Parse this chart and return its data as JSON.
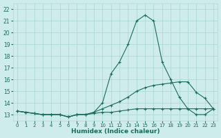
{
  "xlabel": "Humidex (Indice chaleur)",
  "bg_color": "#cdecea",
  "grid_color": "#afd8d4",
  "line_color": "#1a6b5a",
  "xlim": [
    -0.5,
    23.5
  ],
  "ylim": [
    12.5,
    22.5
  ],
  "xticks": [
    0,
    1,
    2,
    3,
    4,
    5,
    6,
    7,
    8,
    9,
    10,
    11,
    12,
    13,
    14,
    15,
    16,
    17,
    18,
    19,
    20,
    21,
    22,
    23
  ],
  "yticks": [
    13,
    14,
    15,
    16,
    17,
    18,
    19,
    20,
    21,
    22
  ],
  "line1_x": [
    0,
    1,
    2,
    3,
    4,
    5,
    6,
    7,
    8,
    9,
    10,
    11,
    12,
    13,
    14,
    15,
    16,
    17,
    18,
    19,
    20,
    21,
    22,
    23
  ],
  "line1_y": [
    13.3,
    13.2,
    13.1,
    13.0,
    13.0,
    13.0,
    12.8,
    13.0,
    13.0,
    13.2,
    14.0,
    16.5,
    17.5,
    19.0,
    21.0,
    21.5,
    21.0,
    17.5,
    16.0,
    14.5,
    13.5,
    13.0,
    13.0,
    13.5
  ],
  "line2_x": [
    0,
    1,
    2,
    3,
    4,
    5,
    6,
    7,
    8,
    9,
    10,
    11,
    12,
    13,
    14,
    15,
    16,
    17,
    18,
    19,
    20,
    21,
    22,
    23
  ],
  "line2_y": [
    13.3,
    13.2,
    13.1,
    13.0,
    13.0,
    13.0,
    12.8,
    13.0,
    13.0,
    13.2,
    13.5,
    13.8,
    14.1,
    14.5,
    15.0,
    15.3,
    15.5,
    15.6,
    15.7,
    15.8,
    15.8,
    14.9,
    14.4,
    13.5
  ],
  "line3_x": [
    0,
    1,
    2,
    3,
    4,
    5,
    6,
    7,
    8,
    9,
    10,
    11,
    12,
    13,
    14,
    15,
    16,
    17,
    18,
    19,
    20,
    21,
    22,
    23
  ],
  "line3_y": [
    13.3,
    13.2,
    13.1,
    13.0,
    13.0,
    13.0,
    12.8,
    13.0,
    13.0,
    13.1,
    13.2,
    13.2,
    13.3,
    13.4,
    13.5,
    13.5,
    13.5,
    13.5,
    13.5,
    13.5,
    13.5,
    13.5,
    13.5,
    13.5
  ]
}
